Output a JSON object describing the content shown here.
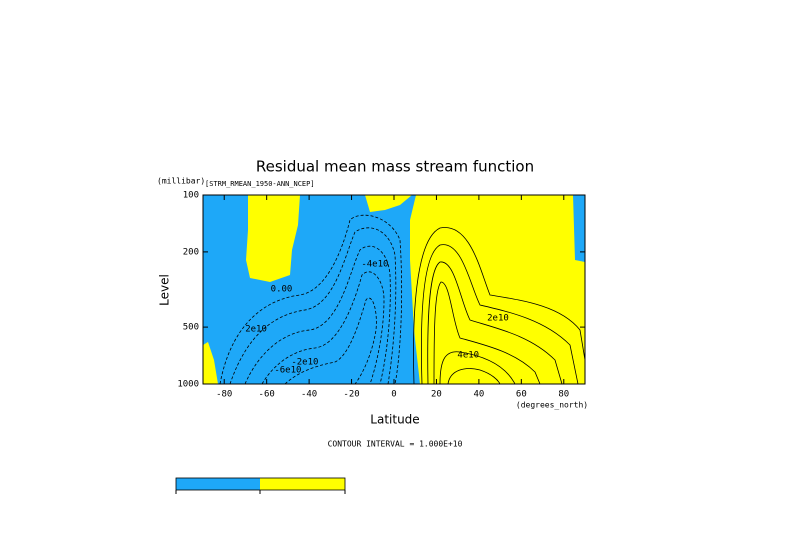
{
  "chart_data": {
    "type": "contour",
    "title": "Residual mean mass stream function",
    "subtitle": "[STRM_RMEAN_1950-ANN_NCEP]",
    "y_units": "(millibar)",
    "y_label": "Level",
    "x_label": "Latitude",
    "x_units": "(degrees_north)",
    "note": "CONTOUR INTERVAL = 1.000E+10",
    "xlim": [
      -90,
      90
    ],
    "xticks": [
      -80,
      -60,
      -40,
      -20,
      0,
      20,
      40,
      60,
      80
    ],
    "ylim": [
      1000,
      100
    ],
    "yticks": [
      100,
      200,
      500,
      1000
    ],
    "log_y": true,
    "fill_colors": [
      "#1ea8f8",
      "#ffff00"
    ],
    "annotations": [
      {
        "text": "0.00",
        "x": -53,
        "y": 314
      },
      {
        "text": "-4e10",
        "x": -9,
        "y": 232
      },
      {
        "text": "2e10",
        "x": -65,
        "y": 511
      },
      {
        "text": "-2e10",
        "x": -42,
        "y": 766
      },
      {
        "text": "-6e10",
        "x": -50,
        "y": 843
      },
      {
        "text": "4e10",
        "x": 35,
        "y": 703
      },
      {
        "text": "2e10",
        "x": 49,
        "y": 448
      }
    ]
  }
}
